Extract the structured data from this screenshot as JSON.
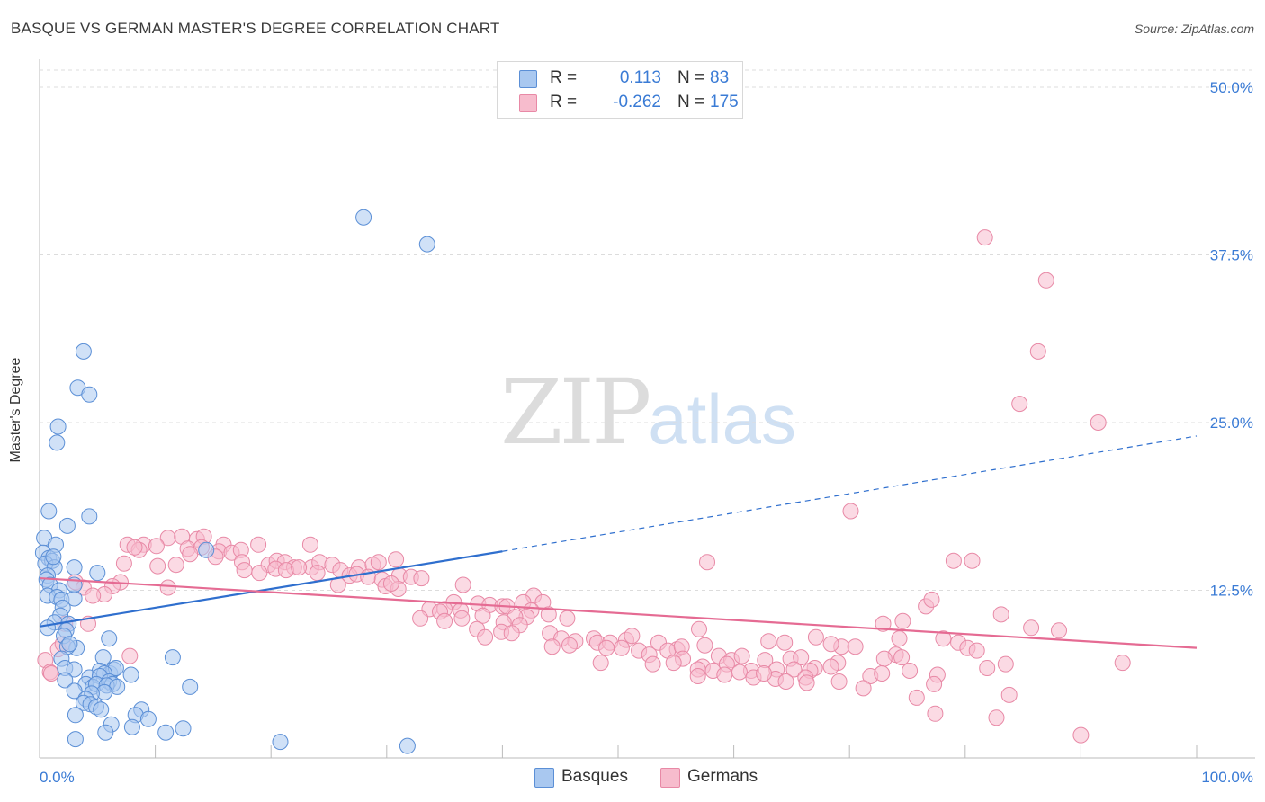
{
  "title": "BASQUE VS GERMAN MASTER'S DEGREE CORRELATION CHART",
  "source": "Source: ZipAtlas.com",
  "watermark": {
    "zip": "ZIP",
    "atlas": "atlas"
  },
  "legend": {
    "rows": [
      {
        "r_label": "R =",
        "r_value": "0.113",
        "n_label": "N =",
        "n_value": "83"
      },
      {
        "r_label": "R =",
        "r_value": "-0.262",
        "n_label": "N =",
        "n_value": "175"
      }
    ]
  },
  "bottom_legend": {
    "basques": "Basques",
    "germans": "Germans"
  },
  "colors": {
    "basque_fill": "#a9c8f0",
    "basque_stroke": "#5b8fd6",
    "basque_line": "#2f6fce",
    "german_fill": "#f7bccd",
    "german_stroke": "#e889a6",
    "german_line": "#e56b93",
    "tick_label": "#3a7bd5",
    "grid": "#dcdcdc"
  },
  "chart_data": {
    "type": "scatter",
    "ylabel": "Master's Degree",
    "xlim": [
      0,
      100
    ],
    "ylim": [
      0,
      50
    ],
    "x_ticks": [
      "0.0%",
      "100.0%"
    ],
    "y_ticks": [
      {
        "value": 12.5,
        "label": "12.5%"
      },
      {
        "value": 25.0,
        "label": "25.0%"
      },
      {
        "value": 37.5,
        "label": "37.5%"
      },
      {
        "value": 50.0,
        "label": "50.0%"
      }
    ],
    "grid": "horizontal dashed",
    "series": [
      {
        "name": "Basques",
        "trend": {
          "x0": 0,
          "y0": 9.8,
          "x1": 40,
          "y1": 15.4,
          "dashed_to_x": 100,
          "dashed_to_y": 24.0
        },
        "points": [
          [
            28,
            40.3
          ],
          [
            33.5,
            38.3
          ],
          [
            3.8,
            30.3
          ],
          [
            3.3,
            27.6
          ],
          [
            4.3,
            27.1
          ],
          [
            1.6,
            24.7
          ],
          [
            1.5,
            23.5
          ],
          [
            0.8,
            18.4
          ],
          [
            4.3,
            18.0
          ],
          [
            2.4,
            17.3
          ],
          [
            0.4,
            16.4
          ],
          [
            1.4,
            15.9
          ],
          [
            0.3,
            15.3
          ],
          [
            0.8,
            14.9
          ],
          [
            1.1,
            14.7
          ],
          [
            0.5,
            14.5
          ],
          [
            1.3,
            14.2
          ],
          [
            0.7,
            13.6
          ],
          [
            0.6,
            13.3
          ],
          [
            0.9,
            12.9
          ],
          [
            1.7,
            12.5
          ],
          [
            0.7,
            12.1
          ],
          [
            1.5,
            12.0
          ],
          [
            1.9,
            11.8
          ],
          [
            3.0,
            11.9
          ],
          [
            5.0,
            13.8
          ],
          [
            3.0,
            12.9
          ],
          [
            2.0,
            11.2
          ],
          [
            1.8,
            10.6
          ],
          [
            1.3,
            10.1
          ],
          [
            2.5,
            10.0
          ],
          [
            0.7,
            9.7
          ],
          [
            2.3,
            9.5
          ],
          [
            2.1,
            9.1
          ],
          [
            3.2,
            8.2
          ],
          [
            2.4,
            8.3
          ],
          [
            2.6,
            8.5
          ],
          [
            6.0,
            8.9
          ],
          [
            1.9,
            7.4
          ],
          [
            5.5,
            7.5
          ],
          [
            11.5,
            7.5
          ],
          [
            2.2,
            6.7
          ],
          [
            3.0,
            6.6
          ],
          [
            5.2,
            6.5
          ],
          [
            6.1,
            6.3
          ],
          [
            6.4,
            6.6
          ],
          [
            6.6,
            6.7
          ],
          [
            5.6,
            6.3
          ],
          [
            7.9,
            6.2
          ],
          [
            4.3,
            6.0
          ],
          [
            5.2,
            6.1
          ],
          [
            2.2,
            5.8
          ],
          [
            4.0,
            5.5
          ],
          [
            4.6,
            5.3
          ],
          [
            4.9,
            5.5
          ],
          [
            6.0,
            5.7
          ],
          [
            6.3,
            5.5
          ],
          [
            5.8,
            5.4
          ],
          [
            6.7,
            5.3
          ],
          [
            13.0,
            5.3
          ],
          [
            3.0,
            5.0
          ],
          [
            5.6,
            4.9
          ],
          [
            4.5,
            4.8
          ],
          [
            4.0,
            4.4
          ],
          [
            3.8,
            4.1
          ],
          [
            4.4,
            4.0
          ],
          [
            4.9,
            3.8
          ],
          [
            5.3,
            3.6
          ],
          [
            8.8,
            3.6
          ],
          [
            3.1,
            3.2
          ],
          [
            8.3,
            3.2
          ],
          [
            9.4,
            2.9
          ],
          [
            6.2,
            2.5
          ],
          [
            8.0,
            2.3
          ],
          [
            12.4,
            2.2
          ],
          [
            5.7,
            1.9
          ],
          [
            10.9,
            1.9
          ],
          [
            3.1,
            1.4
          ],
          [
            20.8,
            1.2
          ],
          [
            31.8,
            0.9
          ],
          [
            3.0,
            14.2
          ],
          [
            1.2,
            15.0
          ],
          [
            14.4,
            15.5
          ]
        ]
      },
      {
        "name": "Germans",
        "trend": {
          "x0": 0,
          "y0": 13.4,
          "x1": 100,
          "y1": 8.2
        },
        "points": [
          [
            81.7,
            38.8
          ],
          [
            87.0,
            35.6
          ],
          [
            86.3,
            30.3
          ],
          [
            84.7,
            26.4
          ],
          [
            91.5,
            25.0
          ],
          [
            70.1,
            18.4
          ],
          [
            11.1,
            16.4
          ],
          [
            12.3,
            16.5
          ],
          [
            13.6,
            16.3
          ],
          [
            14.2,
            16.5
          ],
          [
            7.6,
            15.9
          ],
          [
            9.0,
            15.9
          ],
          [
            10.1,
            15.8
          ],
          [
            12.8,
            15.6
          ],
          [
            14.0,
            15.7
          ],
          [
            15.9,
            15.9
          ],
          [
            18.9,
            15.9
          ],
          [
            23.4,
            15.9
          ],
          [
            8.6,
            15.5
          ],
          [
            8.2,
            15.7
          ],
          [
            13.0,
            15.2
          ],
          [
            15.5,
            15.4
          ],
          [
            16.6,
            15.3
          ],
          [
            17.4,
            15.5
          ],
          [
            15.2,
            15.0
          ],
          [
            7.3,
            14.5
          ],
          [
            10.2,
            14.3
          ],
          [
            11.8,
            14.4
          ],
          [
            17.5,
            14.6
          ],
          [
            19.8,
            14.4
          ],
          [
            20.5,
            14.7
          ],
          [
            21.2,
            14.6
          ],
          [
            22.0,
            14.2
          ],
          [
            23.5,
            14.2
          ],
          [
            24.2,
            14.6
          ],
          [
            25.3,
            14.4
          ],
          [
            27.6,
            14.2
          ],
          [
            28.8,
            14.4
          ],
          [
            29.3,
            14.6
          ],
          [
            30.8,
            14.8
          ],
          [
            57.7,
            14.6
          ],
          [
            79.0,
            14.7
          ],
          [
            80.6,
            14.7
          ],
          [
            17.7,
            14.0
          ],
          [
            19.0,
            13.8
          ],
          [
            20.4,
            14.1
          ],
          [
            21.3,
            14.0
          ],
          [
            22.4,
            14.2
          ],
          [
            24.0,
            13.8
          ],
          [
            26.0,
            14.0
          ],
          [
            26.8,
            13.6
          ],
          [
            27.4,
            13.7
          ],
          [
            28.4,
            13.5
          ],
          [
            29.6,
            13.3
          ],
          [
            31.1,
            13.6
          ],
          [
            32.1,
            13.5
          ],
          [
            33.0,
            13.4
          ],
          [
            7.0,
            13.1
          ],
          [
            3.1,
            13.1
          ],
          [
            6.3,
            12.8
          ],
          [
            11.1,
            12.7
          ],
          [
            3.8,
            12.7
          ],
          [
            25.8,
            12.9
          ],
          [
            29.9,
            12.8
          ],
          [
            31.0,
            12.6
          ],
          [
            36.6,
            12.9
          ],
          [
            30.4,
            13.0
          ],
          [
            5.6,
            12.2
          ],
          [
            4.6,
            12.1
          ],
          [
            42.7,
            12.1
          ],
          [
            35.8,
            11.6
          ],
          [
            37.9,
            11.5
          ],
          [
            38.9,
            11.4
          ],
          [
            40.0,
            11.3
          ],
          [
            41.8,
            11.6
          ],
          [
            43.5,
            11.6
          ],
          [
            35.0,
            11.1
          ],
          [
            40.4,
            11.3
          ],
          [
            33.7,
            11.1
          ],
          [
            34.6,
            10.9
          ],
          [
            36.4,
            11.0
          ],
          [
            42.5,
            11.0
          ],
          [
            42.1,
            10.5
          ],
          [
            38.3,
            10.6
          ],
          [
            44.0,
            10.7
          ],
          [
            72.9,
            10.0
          ],
          [
            76.6,
            11.3
          ],
          [
            41.1,
            10.5
          ],
          [
            35.0,
            10.2
          ],
          [
            32.9,
            10.4
          ],
          [
            36.5,
            10.4
          ],
          [
            40.1,
            10.1
          ],
          [
            41.5,
            9.9
          ],
          [
            45.6,
            10.4
          ],
          [
            74.6,
            10.2
          ],
          [
            77.1,
            11.8
          ],
          [
            83.1,
            10.7
          ],
          [
            4.2,
            10.0
          ],
          [
            2.2,
            10.0
          ],
          [
            37.8,
            9.6
          ],
          [
            39.9,
            9.4
          ],
          [
            40.8,
            9.3
          ],
          [
            44.1,
            9.3
          ],
          [
            57.0,
            9.6
          ],
          [
            67.1,
            9.0
          ],
          [
            85.7,
            9.7
          ],
          [
            88.1,
            9.5
          ],
          [
            38.5,
            9.0
          ],
          [
            45.1,
            8.9
          ],
          [
            46.3,
            8.7
          ],
          [
            47.9,
            8.9
          ],
          [
            48.2,
            8.6
          ],
          [
            49.3,
            8.6
          ],
          [
            50.7,
            8.8
          ],
          [
            51.2,
            9.1
          ],
          [
            53.5,
            8.6
          ],
          [
            55.1,
            8.1
          ],
          [
            63.0,
            8.7
          ],
          [
            64.4,
            8.6
          ],
          [
            74.3,
            8.9
          ],
          [
            78.1,
            8.9
          ],
          [
            79.4,
            8.6
          ],
          [
            80.2,
            8.2
          ],
          [
            1.6,
            8.1
          ],
          [
            2.0,
            8.5
          ],
          [
            44.3,
            8.3
          ],
          [
            45.8,
            8.4
          ],
          [
            49.0,
            8.2
          ],
          [
            50.3,
            8.2
          ],
          [
            51.8,
            8.0
          ],
          [
            54.3,
            8.0
          ],
          [
            55.5,
            8.3
          ],
          [
            57.5,
            8.4
          ],
          [
            69.3,
            8.3
          ],
          [
            70.5,
            8.3
          ],
          [
            74.0,
            7.7
          ],
          [
            0.5,
            7.3
          ],
          [
            7.8,
            7.6
          ],
          [
            52.7,
            7.7
          ],
          [
            55.6,
            7.4
          ],
          [
            58.7,
            7.6
          ],
          [
            59.8,
            7.3
          ],
          [
            60.7,
            7.6
          ],
          [
            62.7,
            7.3
          ],
          [
            64.9,
            7.4
          ],
          [
            65.8,
            7.5
          ],
          [
            69.0,
            7.1
          ],
          [
            73.0,
            7.4
          ],
          [
            74.5,
            7.5
          ],
          [
            81.0,
            8.0
          ],
          [
            83.5,
            7.0
          ],
          [
            93.6,
            7.1
          ],
          [
            48.5,
            7.1
          ],
          [
            53.0,
            7.0
          ],
          [
            54.8,
            7.1
          ],
          [
            57.3,
            6.8
          ],
          [
            59.4,
            7.0
          ],
          [
            61.5,
            6.5
          ],
          [
            63.7,
            6.6
          ],
          [
            65.2,
            6.6
          ],
          [
            67.0,
            6.7
          ],
          [
            68.4,
            6.8
          ],
          [
            81.9,
            6.7
          ],
          [
            0.9,
            6.4
          ],
          [
            1.0,
            6.3
          ],
          [
            56.9,
            6.6
          ],
          [
            58.2,
            6.5
          ],
          [
            60.5,
            6.4
          ],
          [
            61.7,
            6.0
          ],
          [
            63.6,
            5.9
          ],
          [
            66.6,
            6.5
          ],
          [
            71.8,
            6.1
          ],
          [
            72.8,
            6.3
          ],
          [
            75.2,
            6.5
          ],
          [
            77.6,
            6.2
          ],
          [
            59.2,
            6.2
          ],
          [
            56.9,
            6.1
          ],
          [
            62.6,
            6.3
          ],
          [
            66.2,
            6.0
          ],
          [
            64.5,
            5.7
          ],
          [
            71.2,
            5.2
          ],
          [
            69.1,
            5.7
          ],
          [
            77.3,
            5.5
          ],
          [
            66.3,
            5.6
          ],
          [
            75.8,
            4.5
          ],
          [
            77.4,
            3.3
          ],
          [
            83.8,
            4.7
          ],
          [
            82.7,
            3.0
          ],
          [
            90.0,
            1.7
          ],
          [
            68.4,
            8.5
          ]
        ]
      }
    ]
  }
}
